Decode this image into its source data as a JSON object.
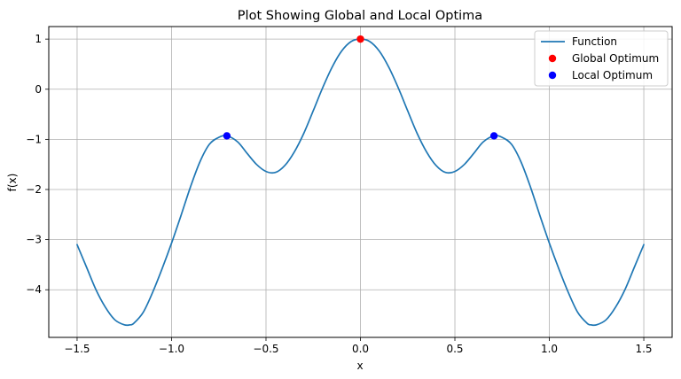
{
  "chart_data": {
    "type": "line",
    "title": "Plot Showing Global and Local Optima",
    "xlabel": "x",
    "ylabel": "f(x)",
    "xlim": [
      -1.65,
      1.65
    ],
    "ylim": [
      -4.95,
      1.25
    ],
    "grid": true,
    "legend_placement": "top-right",
    "x_ticks": [
      -1.5,
      -1.0,
      -0.5,
      0.0,
      0.5,
      1.0,
      1.5
    ],
    "x_tick_labels": [
      "−1.5",
      "−1.0",
      "−0.5",
      "0.0",
      "0.5",
      "1.0",
      "1.5"
    ],
    "y_ticks": [
      1,
      0,
      -1,
      -2,
      -3,
      -4
    ],
    "y_tick_labels": [
      "1",
      "0",
      "−1",
      "−2",
      "−3",
      "−4"
    ],
    "series": [
      {
        "name": "Function",
        "kind": "line",
        "color": "#1f77b4",
        "x": [
          -1.5,
          -1.45,
          -1.4,
          -1.35,
          -1.3,
          -1.25,
          -1.22,
          -1.2,
          -1.15,
          -1.1,
          -1.05,
          -1.0,
          -0.95,
          -0.9,
          -0.85,
          -0.8,
          -0.75,
          -0.707,
          -0.65,
          -0.6,
          -0.55,
          -0.5,
          -0.45,
          -0.4,
          -0.35,
          -0.3,
          -0.25,
          -0.2,
          -0.15,
          -0.1,
          -0.05,
          0.0,
          0.05,
          0.1,
          0.15,
          0.2,
          0.25,
          0.3,
          0.35,
          0.4,
          0.45,
          0.5,
          0.55,
          0.6,
          0.65,
          0.707,
          0.75,
          0.8,
          0.85,
          0.9,
          0.95,
          1.0,
          1.05,
          1.1,
          1.15,
          1.2,
          1.22,
          1.25,
          1.3,
          1.35,
          1.4,
          1.45,
          1.5
        ],
        "y": [
          -3.1,
          -3.55,
          -4.0,
          -4.35,
          -4.6,
          -4.7,
          -4.7,
          -4.67,
          -4.45,
          -4.05,
          -3.58,
          -3.07,
          -2.52,
          -1.95,
          -1.45,
          -1.1,
          -0.96,
          -0.93,
          -1.05,
          -1.28,
          -1.5,
          -1.64,
          -1.66,
          -1.52,
          -1.25,
          -0.88,
          -0.43,
          0.03,
          0.44,
          0.76,
          0.95,
          1.0,
          0.95,
          0.76,
          0.44,
          0.03,
          -0.43,
          -0.88,
          -1.25,
          -1.52,
          -1.66,
          -1.64,
          -1.5,
          -1.28,
          -1.05,
          -0.93,
          -0.96,
          -1.1,
          -1.45,
          -1.95,
          -2.52,
          -3.07,
          -3.58,
          -4.05,
          -4.45,
          -4.67,
          -4.7,
          -4.7,
          -4.6,
          -4.35,
          -4.0,
          -3.55,
          -3.1
        ]
      },
      {
        "name": "Global Optimum",
        "kind": "scatter",
        "color": "#ff0000",
        "x": [
          0.0
        ],
        "y": [
          1.0
        ]
      },
      {
        "name": "Local Optimum",
        "kind": "scatter",
        "color": "#0000ff",
        "x": [
          -0.707,
          0.707
        ],
        "y": [
          -0.93,
          -0.93
        ]
      }
    ]
  }
}
